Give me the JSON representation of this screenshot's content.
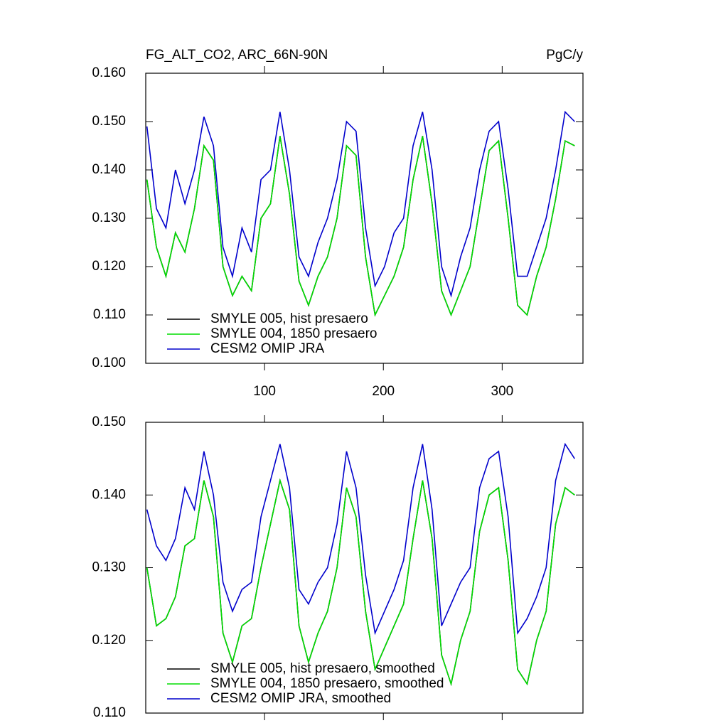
{
  "chart_data": [
    {
      "type": "line",
      "title": "FG_ALT_CO2, ARC_66N-90N",
      "units": "PgC/y",
      "x": [
        1,
        9,
        17,
        25,
        33,
        41,
        49,
        57,
        65,
        73,
        81,
        89,
        97,
        105,
        113,
        121,
        129,
        137,
        145,
        153,
        161,
        169,
        177,
        185,
        193,
        201,
        209,
        217,
        225,
        233,
        241,
        249,
        257,
        265,
        273,
        281,
        289,
        297,
        305,
        313,
        321,
        329,
        337,
        345,
        353,
        361
      ],
      "xlim": [
        0,
        368
      ],
      "xticks": [
        100,
        200,
        300
      ],
      "ylim": [
        0.1,
        0.16
      ],
      "yticks": [
        {
          "value": 0.1,
          "label": "0.100"
        },
        {
          "value": 0.11,
          "label": "0.110"
        },
        {
          "value": 0.12,
          "label": "0.120"
        },
        {
          "value": 0.13,
          "label": "0.130"
        },
        {
          "value": 0.14,
          "label": "0.140"
        },
        {
          "value": 0.15,
          "label": "0.150"
        },
        {
          "value": 0.16,
          "label": "0.160"
        }
      ],
      "legend": "lower left",
      "series": [
        {
          "name": "SMYLE 005, hist presaero",
          "color": "#000000",
          "values": [
            0.138,
            0.124,
            0.118,
            0.127,
            0.123,
            0.132,
            0.145,
            0.142,
            0.12,
            0.114,
            0.118,
            0.115,
            0.13,
            0.133,
            0.147,
            0.135,
            0.117,
            0.112,
            0.118,
            0.122,
            0.13,
            0.145,
            0.143,
            0.122,
            0.11,
            0.114,
            0.118,
            0.124,
            0.138,
            0.147,
            0.133,
            0.115,
            0.11,
            0.115,
            0.12,
            0.132,
            0.144,
            0.146,
            0.13,
            0.112,
            0.11,
            0.118,
            0.124,
            0.134,
            0.146,
            0.145
          ]
        },
        {
          "name": "SMYLE 004, 1850 presaero",
          "color": "#00dd00",
          "values": [
            0.138,
            0.124,
            0.118,
            0.127,
            0.123,
            0.132,
            0.145,
            0.142,
            0.12,
            0.114,
            0.118,
            0.115,
            0.13,
            0.133,
            0.147,
            0.135,
            0.117,
            0.112,
            0.118,
            0.122,
            0.13,
            0.145,
            0.143,
            0.122,
            0.11,
            0.114,
            0.118,
            0.124,
            0.138,
            0.147,
            0.133,
            0.115,
            0.11,
            0.115,
            0.12,
            0.132,
            0.144,
            0.146,
            0.13,
            0.112,
            0.11,
            0.118,
            0.124,
            0.134,
            0.146,
            0.145
          ]
        },
        {
          "name": "CESM2 OMIP JRA",
          "color": "#0000cc",
          "values": [
            0.149,
            0.132,
            0.128,
            0.14,
            0.133,
            0.14,
            0.151,
            0.145,
            0.124,
            0.118,
            0.128,
            0.123,
            0.138,
            0.14,
            0.152,
            0.14,
            0.122,
            0.118,
            0.125,
            0.13,
            0.138,
            0.15,
            0.148,
            0.128,
            0.116,
            0.12,
            0.127,
            0.13,
            0.145,
            0.152,
            0.14,
            0.12,
            0.114,
            0.122,
            0.128,
            0.14,
            0.148,
            0.15,
            0.136,
            0.118,
            0.118,
            0.124,
            0.13,
            0.14,
            0.152,
            0.15
          ]
        }
      ]
    },
    {
      "type": "line",
      "x": [
        1,
        9,
        17,
        25,
        33,
        41,
        49,
        57,
        65,
        73,
        81,
        89,
        97,
        105,
        113,
        121,
        129,
        137,
        145,
        153,
        161,
        169,
        177,
        185,
        193,
        201,
        209,
        217,
        225,
        233,
        241,
        249,
        257,
        265,
        273,
        281,
        289,
        297,
        305,
        313,
        321,
        329,
        337,
        345,
        353,
        361
      ],
      "xlim": [
        0,
        368
      ],
      "xticks": [
        100,
        200,
        300
      ],
      "ylim": [
        0.11,
        0.15
      ],
      "yticks": [
        {
          "value": 0.11,
          "label": "0.110"
        },
        {
          "value": 0.12,
          "label": "0.120"
        },
        {
          "value": 0.13,
          "label": "0.130"
        },
        {
          "value": 0.14,
          "label": "0.140"
        },
        {
          "value": 0.15,
          "label": "0.150"
        }
      ],
      "legend": "lower left",
      "series": [
        {
          "name": "SMYLE 005, hist presaero, smoothed",
          "color": "#000000",
          "values": [
            0.13,
            0.122,
            0.123,
            0.126,
            0.133,
            0.134,
            0.142,
            0.137,
            0.121,
            0.117,
            0.122,
            0.123,
            0.13,
            0.136,
            0.142,
            0.138,
            0.122,
            0.117,
            0.121,
            0.124,
            0.13,
            0.141,
            0.137,
            0.124,
            0.116,
            0.119,
            0.122,
            0.125,
            0.134,
            0.142,
            0.134,
            0.118,
            0.114,
            0.12,
            0.124,
            0.135,
            0.14,
            0.141,
            0.131,
            0.116,
            0.114,
            0.12,
            0.124,
            0.136,
            0.141,
            0.14
          ]
        },
        {
          "name": "SMYLE 004, 1850 presaero, smoothed",
          "color": "#00dd00",
          "values": [
            0.13,
            0.122,
            0.123,
            0.126,
            0.133,
            0.134,
            0.142,
            0.137,
            0.121,
            0.117,
            0.122,
            0.123,
            0.13,
            0.136,
            0.142,
            0.138,
            0.122,
            0.117,
            0.121,
            0.124,
            0.13,
            0.141,
            0.137,
            0.124,
            0.116,
            0.119,
            0.122,
            0.125,
            0.134,
            0.142,
            0.134,
            0.118,
            0.114,
            0.12,
            0.124,
            0.135,
            0.14,
            0.141,
            0.131,
            0.116,
            0.114,
            0.12,
            0.124,
            0.136,
            0.141,
            0.14
          ]
        },
        {
          "name": "CESM2 OMIP JRA, smoothed",
          "color": "#0000cc",
          "values": [
            0.138,
            0.133,
            0.131,
            0.134,
            0.141,
            0.138,
            0.146,
            0.14,
            0.128,
            0.124,
            0.127,
            0.128,
            0.137,
            0.142,
            0.147,
            0.141,
            0.127,
            0.125,
            0.128,
            0.13,
            0.136,
            0.146,
            0.141,
            0.129,
            0.121,
            0.124,
            0.127,
            0.131,
            0.141,
            0.147,
            0.138,
            0.122,
            0.125,
            0.128,
            0.13,
            0.141,
            0.145,
            0.146,
            0.137,
            0.121,
            0.123,
            0.126,
            0.13,
            0.142,
            0.147,
            0.145
          ]
        }
      ]
    }
  ]
}
